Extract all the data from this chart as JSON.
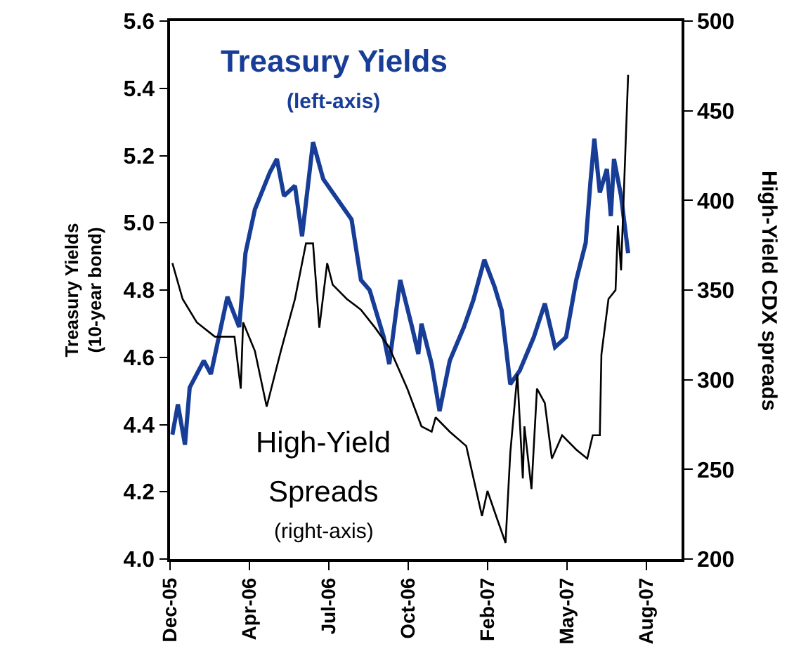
{
  "chart_data": {
    "type": "line",
    "ylabel": "Treasury Yields\n(10-year bond)",
    "y2label": "High-Yield CDX spreads",
    "annotations": [
      "Treasury Yields",
      "(left-axis)",
      "High-Yield",
      "Spreads",
      "(right-axis)"
    ],
    "xlim": [
      "2005-12-31",
      "2007-10-13"
    ],
    "xticks": [
      {
        "value": "2005-12-31",
        "label": "Dec-05"
      },
      {
        "value": "2006-04-11",
        "label": "Apr-06"
      },
      {
        "value": "2006-07-21",
        "label": "Jul-06"
      },
      {
        "value": "2006-10-30",
        "label": "Oct-06"
      },
      {
        "value": "2007-02-08",
        "label": "Feb-07"
      },
      {
        "value": "2007-05-20",
        "label": "May-07"
      },
      {
        "value": "2007-08-29",
        "label": "Aug-07"
      }
    ],
    "ylim": [
      4.0,
      5.6
    ],
    "yticks": [
      {
        "value": 4.0,
        "label": "4.0"
      },
      4.2,
      4.4,
      4.6,
      4.8,
      {
        "value": 5.0,
        "label": "5.0"
      },
      5.2,
      5.4,
      5.6
    ],
    "y2lim": [
      200,
      500
    ],
    "y2ticks": [
      200,
      250,
      300,
      350,
      400,
      450,
      500
    ],
    "grid": false,
    "marker": "none",
    "series": [
      {
        "color": "#173d97",
        "line_style": "solid",
        "x": [
          "2006-01-03",
          "2006-01-10",
          "2006-01-19",
          "2006-01-25",
          "2006-02-12",
          "2006-02-21",
          "2006-03-14",
          "2006-03-29",
          "2006-04-06",
          "2006-04-18",
          "2006-05-07",
          "2006-05-16",
          "2006-05-25",
          "2006-06-08",
          "2006-06-17",
          "2006-07-01",
          "2006-07-14",
          "2006-08-01",
          "2006-08-19",
          "2006-08-31",
          "2006-09-11",
          "2006-09-29",
          "2006-10-06",
          "2006-10-20",
          "2006-11-04",
          "2006-11-12",
          "2006-11-16",
          "2006-11-29",
          "2006-12-09",
          "2006-12-22",
          "2007-01-09",
          "2007-01-21",
          "2007-02-04",
          "2007-02-17",
          "2007-02-26",
          "2007-03-09",
          "2007-03-21",
          "2007-04-08",
          "2007-04-22",
          "2007-05-05",
          "2007-05-19",
          "2007-06-01",
          "2007-06-13",
          "2007-06-19",
          "2007-06-24",
          "2007-07-01",
          "2007-07-10",
          "2007-07-15",
          "2007-07-19",
          "2007-07-28",
          "2007-08-06"
        ],
        "values": [
          4.37,
          4.46,
          4.34,
          4.51,
          4.59,
          4.55,
          4.78,
          4.69,
          4.91,
          5.04,
          5.15,
          5.19,
          5.08,
          5.11,
          4.96,
          5.24,
          5.13,
          5.07,
          5.01,
          4.83,
          4.8,
          4.66,
          4.58,
          4.83,
          4.69,
          4.61,
          4.7,
          4.58,
          4.44,
          4.59,
          4.69,
          4.77,
          4.89,
          4.81,
          4.74,
          4.52,
          4.56,
          4.66,
          4.76,
          4.63,
          4.66,
          4.83,
          4.94,
          5.12,
          5.25,
          5.09,
          5.16,
          5.02,
          5.19,
          5.08,
          4.91
        ]
      },
      {
        "color": "#000000",
        "axis": "y2",
        "line_style": "solid",
        "x": [
          "2006-01-03",
          "2006-01-16",
          "2006-02-03",
          "2006-02-26",
          "2006-03-23",
          "2006-03-31",
          "2006-04-03",
          "2006-04-18",
          "2006-05-03",
          "2006-05-21",
          "2006-06-08",
          "2006-06-22",
          "2006-07-01",
          "2006-07-09",
          "2006-07-19",
          "2006-07-26",
          "2006-08-13",
          "2006-08-31",
          "2006-09-18",
          "2006-10-06",
          "2006-10-29",
          "2006-11-16",
          "2006-11-29",
          "2006-12-04",
          "2006-12-22",
          "2007-01-12",
          "2007-02-01",
          "2007-02-08",
          "2007-02-19",
          "2007-03-03",
          "2007-03-09",
          "2007-03-18",
          "2007-03-25",
          "2007-03-27",
          "2007-04-05",
          "2007-04-12",
          "2007-04-22",
          "2007-05-01",
          "2007-05-14",
          "2007-06-01",
          "2007-06-15",
          "2007-06-22",
          "2007-07-01",
          "2007-07-03",
          "2007-07-12",
          "2007-07-21",
          "2007-07-24",
          "2007-07-28",
          "2007-08-06"
        ],
        "values": [
          365,
          345,
          332,
          324,
          324,
          295,
          332,
          316,
          285,
          316,
          345,
          376,
          376,
          329,
          365,
          353,
          345,
          339,
          329,
          318,
          295,
          274,
          271,
          279,
          271,
          263,
          224,
          238,
          224,
          209,
          259,
          303,
          245,
          274,
          239,
          295,
          287,
          256,
          269,
          261,
          256,
          269,
          269,
          314,
          345,
          350,
          386,
          361,
          470
        ]
      }
    ]
  }
}
